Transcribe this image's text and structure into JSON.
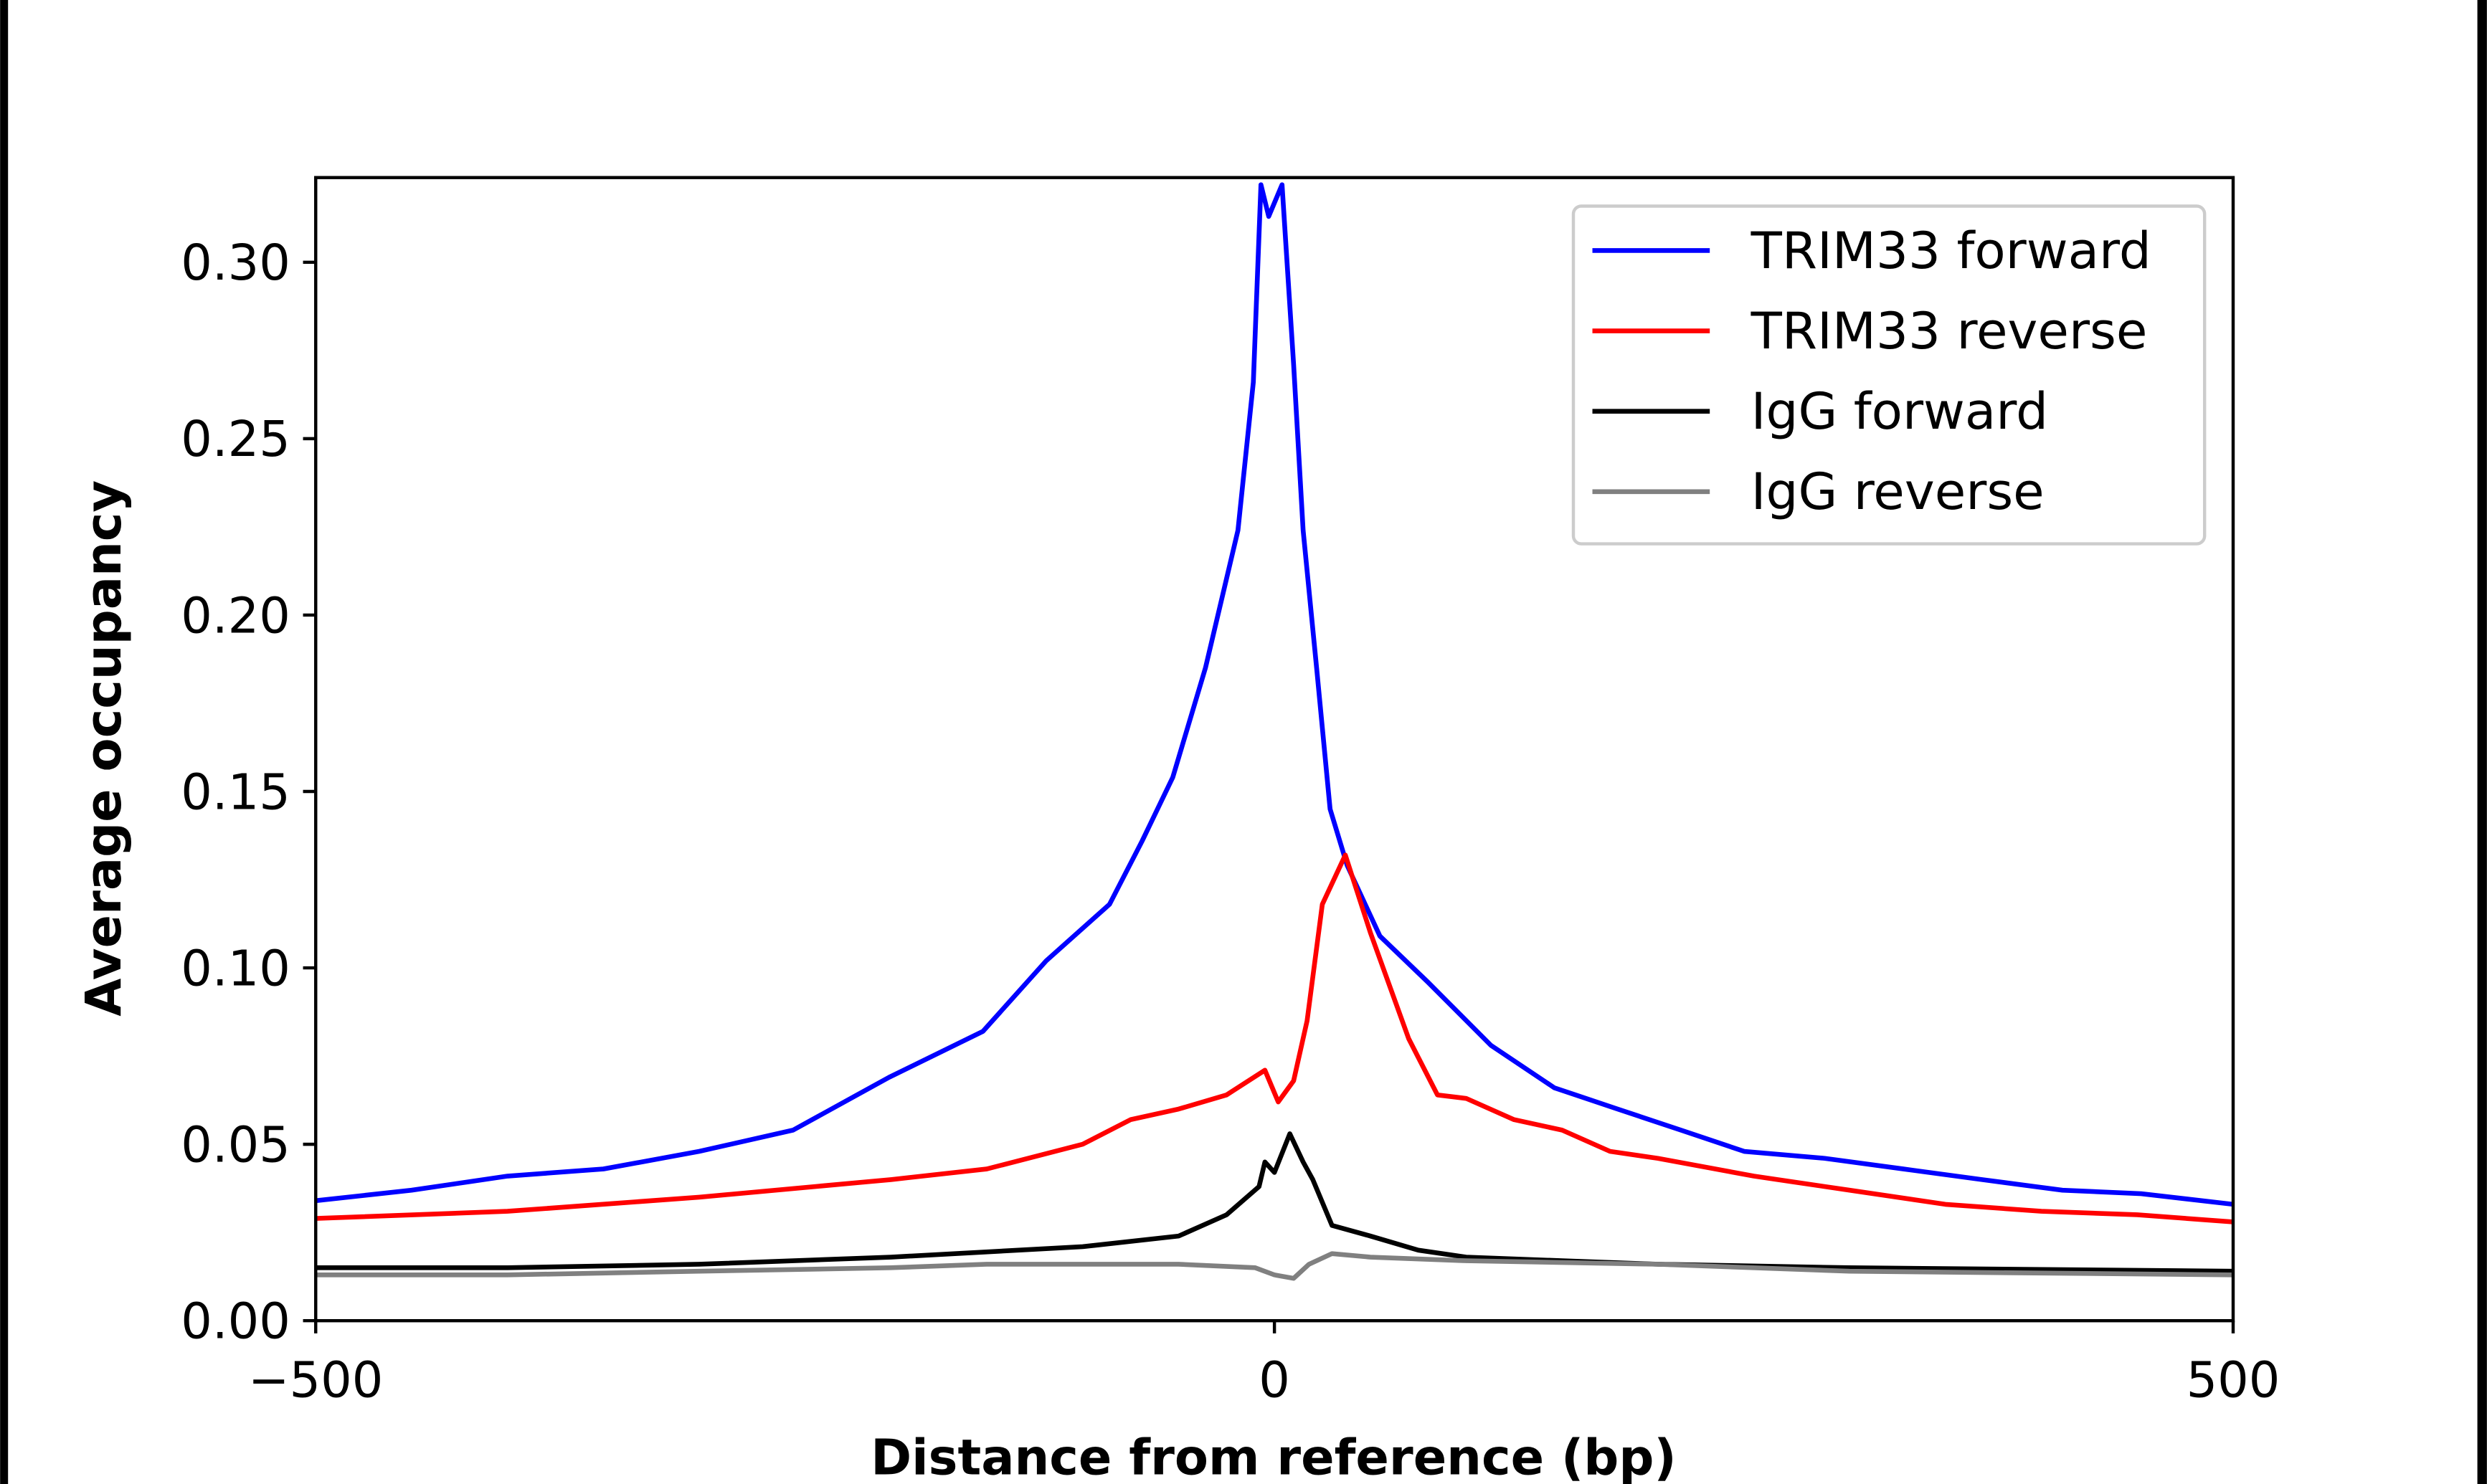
{
  "chart_data": {
    "type": "line",
    "title": "",
    "xlabel": "Distance from reference (bp)",
    "ylabel": "Average occupancy",
    "xlim": [
      -500,
      500
    ],
    "ylim": [
      0,
      0.324
    ],
    "xticks": [
      -500,
      0,
      500
    ],
    "xtick_labels": [
      "−500",
      "0",
      "500"
    ],
    "yticks": [
      0,
      0.05,
      0.1,
      0.15,
      0.2,
      0.25,
      0.3
    ],
    "ytick_labels": [
      "0.00",
      "0.05",
      "0.10",
      "0.15",
      "0.20",
      "0.25",
      "0.30"
    ],
    "grid": false,
    "legend_position": "top-right",
    "series": [
      {
        "name": "TRIM33 forward",
        "color": "#0000ff",
        "x": [
          -500,
          -450,
          -400,
          -350,
          -300,
          -251,
          -201,
          -152,
          -119,
          -86,
          -69,
          -53,
          -36,
          -19,
          -11,
          -7,
          -3,
          4,
          10,
          15,
          22,
          29,
          38,
          55,
          80,
          113,
          146,
          179,
          212,
          245,
          287,
          328,
          369,
          411,
          452,
          500
        ],
        "y": [
          0.034,
          0.037,
          0.041,
          0.043,
          0.048,
          0.054,
          0.069,
          0.082,
          0.102,
          0.118,
          0.136,
          0.154,
          0.185,
          0.224,
          0.266,
          0.322,
          0.313,
          0.322,
          0.271,
          0.224,
          0.185,
          0.145,
          0.129,
          0.109,
          0.096,
          0.078,
          0.066,
          0.06,
          0.054,
          0.048,
          0.046,
          0.043,
          0.04,
          0.037,
          0.036,
          0.033
        ]
      },
      {
        "name": "TRIM33 reverse",
        "color": "#ff0000",
        "x": [
          -500,
          -400,
          -300,
          -200,
          -150,
          -100,
          -75,
          -50,
          -25,
          -5,
          2,
          10,
          17,
          25,
          37,
          50,
          70,
          85,
          100,
          125,
          150,
          175,
          200,
          250,
          300,
          350,
          400,
          450,
          500
        ],
        "y": [
          0.029,
          0.031,
          0.035,
          0.04,
          0.043,
          0.05,
          0.057,
          0.06,
          0.064,
          0.071,
          0.062,
          0.068,
          0.085,
          0.118,
          0.132,
          0.11,
          0.08,
          0.064,
          0.063,
          0.057,
          0.054,
          0.048,
          0.046,
          0.041,
          0.037,
          0.033,
          0.031,
          0.03,
          0.028
        ]
      },
      {
        "name": "IgG forward",
        "color": "#000000",
        "x": [
          -500,
          -400,
          -300,
          -200,
          -100,
          -50,
          -25,
          -8,
          -5,
          0,
          8,
          15,
          20,
          30,
          50,
          75,
          100,
          150,
          200,
          300,
          500
        ],
        "y": [
          0.015,
          0.015,
          0.016,
          0.018,
          0.021,
          0.024,
          0.03,
          0.038,
          0.045,
          0.042,
          0.053,
          0.045,
          0.04,
          0.027,
          0.024,
          0.02,
          0.018,
          0.017,
          0.016,
          0.015,
          0.014
        ]
      },
      {
        "name": "IgG reverse",
        "color": "#808080",
        "x": [
          -500,
          -400,
          -300,
          -200,
          -150,
          -100,
          -50,
          -10,
          0,
          10,
          18,
          30,
          50,
          100,
          200,
          300,
          500
        ],
        "y": [
          0.013,
          0.013,
          0.014,
          0.015,
          0.016,
          0.016,
          0.016,
          0.015,
          0.013,
          0.012,
          0.016,
          0.019,
          0.018,
          0.017,
          0.016,
          0.014,
          0.013
        ]
      }
    ]
  }
}
